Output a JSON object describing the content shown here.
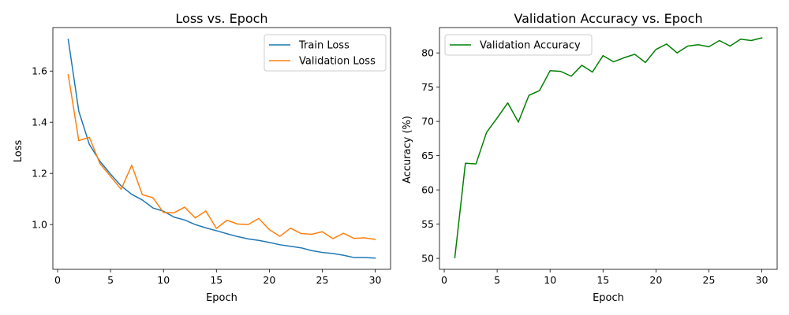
{
  "chart_data": [
    {
      "type": "line",
      "title": "Loss vs. Epoch",
      "xlabel": "Epoch",
      "ylabel": "Loss",
      "xlim": [
        -0.45,
        31.45
      ],
      "ylim": [
        0.825,
        1.77
      ],
      "xticks": [
        0,
        5,
        10,
        15,
        20,
        25,
        30
      ],
      "yticks": [
        1.0,
        1.2,
        1.4,
        1.6
      ],
      "ytick_labels": [
        "1.0",
        "1.2",
        "1.4",
        "1.6"
      ],
      "legend": "top-right",
      "x": [
        1,
        2,
        3,
        4,
        5,
        6,
        7,
        8,
        9,
        10,
        11,
        12,
        13,
        14,
        15,
        16,
        17,
        18,
        19,
        20,
        21,
        22,
        23,
        24,
        25,
        26,
        27,
        28,
        29,
        30
      ],
      "series": [
        {
          "name": "Train Loss",
          "color": "#1f77b4",
          "values": [
            1.724,
            1.443,
            1.313,
            1.247,
            1.197,
            1.151,
            1.118,
            1.096,
            1.065,
            1.052,
            1.029,
            1.018,
            1.0,
            0.987,
            0.976,
            0.964,
            0.953,
            0.944,
            0.938,
            0.93,
            0.921,
            0.915,
            0.909,
            0.898,
            0.891,
            0.887,
            0.88,
            0.871,
            0.871,
            0.869
          ]
        },
        {
          "name": "Validation Loss",
          "color": "#ff7f0e",
          "values": [
            1.586,
            1.328,
            1.341,
            1.238,
            1.188,
            1.138,
            1.232,
            1.117,
            1.105,
            1.047,
            1.046,
            1.068,
            1.026,
            1.053,
            0.985,
            1.017,
            1.002,
            1.0,
            1.024,
            0.98,
            0.954,
            0.986,
            0.965,
            0.962,
            0.972,
            0.945,
            0.966,
            0.946,
            0.948,
            0.942
          ]
        }
      ]
    },
    {
      "type": "line",
      "title": "Validation Accuracy vs. Epoch",
      "xlabel": "Epoch",
      "ylabel": "Accuracy (%)",
      "xlim": [
        -0.45,
        31.45
      ],
      "ylim": [
        48.4,
        83.7
      ],
      "xticks": [
        0,
        5,
        10,
        15,
        20,
        25,
        30
      ],
      "yticks": [
        50,
        55,
        60,
        65,
        70,
        75,
        80
      ],
      "ytick_labels": [
        "50",
        "55",
        "60",
        "65",
        "70",
        "75",
        "80"
      ],
      "legend": "top-left",
      "x": [
        1,
        2,
        3,
        4,
        5,
        6,
        7,
        8,
        9,
        10,
        11,
        12,
        13,
        14,
        15,
        16,
        17,
        18,
        19,
        20,
        21,
        22,
        23,
        24,
        25,
        26,
        27,
        28,
        29,
        30
      ],
      "series": [
        {
          "name": "Validation Accuracy",
          "color": "#008000",
          "values": [
            50.1,
            63.9,
            63.8,
            68.4,
            70.5,
            72.7,
            69.9,
            73.8,
            74.5,
            77.4,
            77.3,
            76.6,
            78.2,
            77.2,
            79.6,
            78.7,
            79.3,
            79.8,
            78.6,
            80.5,
            81.3,
            80.0,
            81.0,
            81.2,
            80.9,
            81.8,
            81.0,
            82.0,
            81.8,
            82.2
          ]
        }
      ]
    }
  ]
}
